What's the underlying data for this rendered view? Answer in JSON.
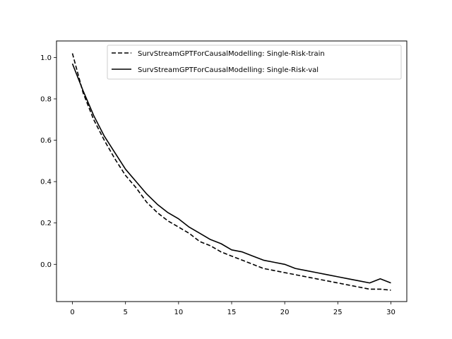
{
  "chart_data": {
    "type": "line",
    "title": "",
    "xlabel": "",
    "ylabel": "",
    "xlim": [
      -1.5,
      31.5
    ],
    "ylim": [
      -0.18,
      1.08
    ],
    "xticks": [
      0,
      5,
      10,
      15,
      20,
      25,
      30
    ],
    "xtick_labels": [
      "0",
      "5",
      "10",
      "15",
      "20",
      "25",
      "30"
    ],
    "yticks": [
      0.0,
      0.2,
      0.4,
      0.6,
      0.8,
      1.0
    ],
    "ytick_labels": [
      "0.0",
      "0.2",
      "0.4",
      "0.6",
      "0.8",
      "1.0"
    ],
    "grid": false,
    "legend_position": "top-right",
    "x": [
      0,
      1,
      2,
      3,
      4,
      5,
      6,
      7,
      8,
      9,
      10,
      11,
      12,
      13,
      14,
      15,
      16,
      17,
      18,
      19,
      20,
      21,
      22,
      23,
      24,
      25,
      26,
      27,
      28,
      29,
      30
    ],
    "series": [
      {
        "name": "SurvStreamGPTForCausalModelling: Single-Risk-train",
        "style": "dashed",
        "color": "#000000",
        "values": [
          1.02,
          0.83,
          0.7,
          0.6,
          0.51,
          0.43,
          0.37,
          0.3,
          0.25,
          0.21,
          0.18,
          0.15,
          0.11,
          0.09,
          0.06,
          0.04,
          0.02,
          0.0,
          -0.02,
          -0.03,
          -0.04,
          -0.05,
          -0.06,
          -0.07,
          -0.08,
          -0.09,
          -0.1,
          -0.11,
          -0.12,
          -0.12,
          -0.125
        ]
      },
      {
        "name": "SurvStreamGPTForCausalModelling: Single-Risk-val",
        "style": "solid",
        "color": "#000000",
        "values": [
          0.97,
          0.84,
          0.72,
          0.62,
          0.54,
          0.46,
          0.4,
          0.34,
          0.29,
          0.25,
          0.22,
          0.18,
          0.15,
          0.12,
          0.1,
          0.07,
          0.06,
          0.04,
          0.02,
          0.01,
          0.0,
          -0.02,
          -0.03,
          -0.04,
          -0.05,
          -0.06,
          -0.07,
          -0.08,
          -0.09,
          -0.07,
          -0.09
        ]
      }
    ]
  }
}
